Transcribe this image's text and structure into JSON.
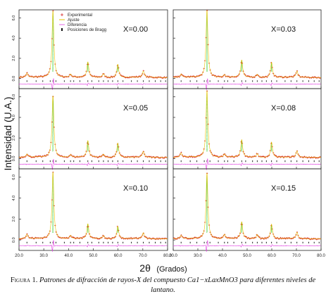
{
  "figure": {
    "ylabel": "Intensidad (U.A.)",
    "xlabel_symbol": "2θ",
    "xlabel_unit": "(Grados)",
    "caption_label": "Figura 1.",
    "caption_text": "Patrones de difracción de rayos-X del compuesto Ca1−xLaxMnO3 para diferentes niveles de lantano."
  },
  "colors": {
    "experimental": "#d62728",
    "ajuste": "#e6c200",
    "diferencia": "#e040e0",
    "bragg": "#111111",
    "peaks": "#33cc33"
  },
  "chart_data": {
    "type": "line",
    "grid": false,
    "legend": {
      "placement": "top-left",
      "entries": [
        "Experimental",
        "Ajuste",
        "Diferencia",
        "Posiciones de Bragg"
      ]
    },
    "x_ticks": [
      "20.0",
      "30.0",
      "40.0",
      "50.0",
      "60.0",
      "70.0",
      "80.0"
    ],
    "xlim": [
      20,
      80
    ],
    "y_ticks": [
      "0.0",
      "2.0",
      "4.0",
      "6.0"
    ],
    "ylim": [
      -1.0,
      6.8
    ],
    "peaks_2theta": [
      23.2,
      33.7,
      40.8,
      47.8,
      54.1,
      59.9,
      70.2
    ],
    "bragg_positions": [
      23.2,
      26.9,
      29.6,
      32.6,
      33.7,
      34.9,
      38.3,
      40.8,
      42.1,
      44.6,
      47.8,
      49.4,
      52.2,
      54.1,
      56.0,
      57.8,
      59.9,
      62.0,
      65.4,
      67.8,
      70.2,
      72.6,
      75.0,
      77.2,
      79.2
    ],
    "panels": [
      {
        "label": "X=0.00",
        "peak_heights": [
          0.4,
          6.6,
          0.3,
          1.5,
          0.35,
          1.3,
          0.6
        ]
      },
      {
        "label": "X=0.03",
        "peak_heights": [
          0.3,
          6.7,
          0.25,
          1.7,
          0.3,
          1.5,
          0.6
        ]
      },
      {
        "label": "X=0.05",
        "peak_heights": [
          0.3,
          6.0,
          0.25,
          1.6,
          0.3,
          1.4,
          0.55
        ]
      },
      {
        "label": "X=0.08",
        "peak_heights": [
          0.4,
          6.5,
          0.3,
          1.7,
          0.35,
          1.5,
          0.6
        ]
      },
      {
        "label": "X=0.10",
        "peak_heights": [
          0.4,
          6.4,
          0.3,
          1.4,
          0.3,
          1.2,
          0.55
        ]
      },
      {
        "label": "X=0.15",
        "peak_heights": [
          0.3,
          6.3,
          0.4,
          1.6,
          0.4,
          1.4,
          0.6
        ]
      }
    ]
  }
}
